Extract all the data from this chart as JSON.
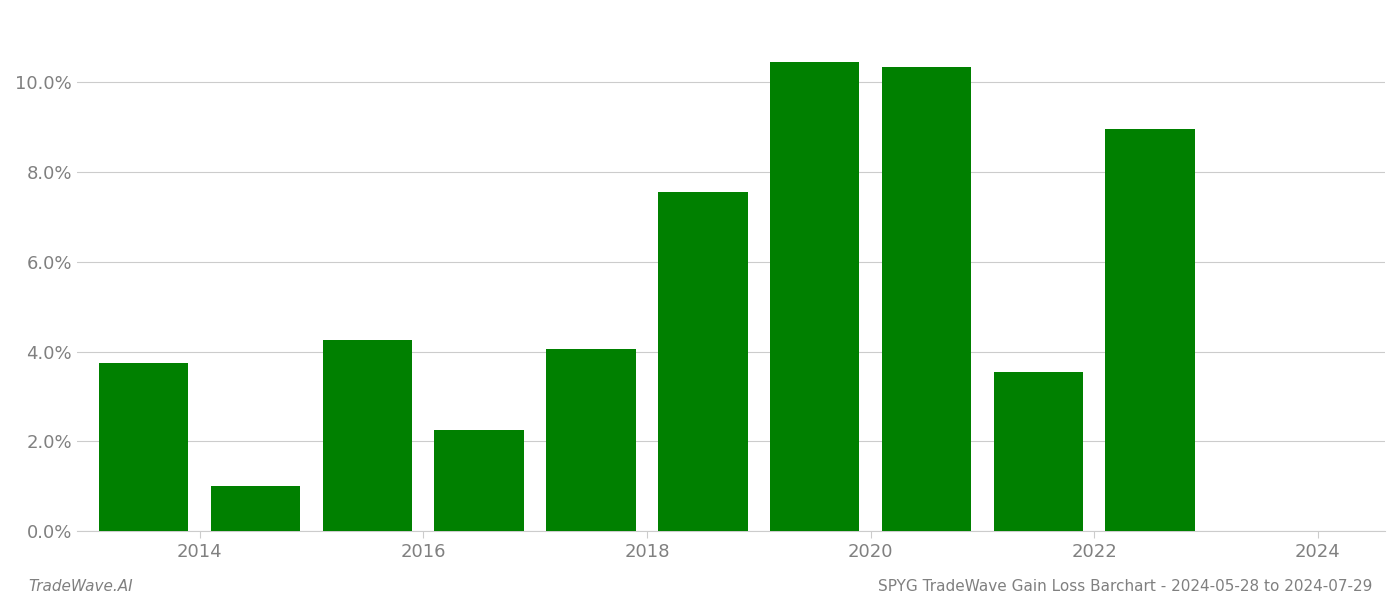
{
  "years": [
    2014,
    2015,
    2016,
    2017,
    2018,
    2019,
    2020,
    2021,
    2022,
    2023,
    2024
  ],
  "values": [
    0.0375,
    0.01,
    0.0425,
    0.0225,
    0.0405,
    0.0755,
    0.1045,
    0.1035,
    0.0355,
    0.0895,
    0.0
  ],
  "bar_color": "#008000",
  "background_color": "#ffffff",
  "grid_color": "#cccccc",
  "tick_label_color": "#808080",
  "ylim": [
    0,
    0.115
  ],
  "yticks": [
    0.0,
    0.02,
    0.04,
    0.06,
    0.08,
    0.1
  ],
  "xtick_positions": [
    2014.5,
    2016.5,
    2018.5,
    2020.5,
    2022.5,
    2024.5
  ],
  "xtick_labels": [
    "2014",
    "2016",
    "2018",
    "2020",
    "2022",
    "2024"
  ],
  "bar_width": 0.8,
  "footer_left": "TradeWave.AI",
  "footer_right": "SPYG TradeWave Gain Loss Barchart - 2024-05-28 to 2024-07-29"
}
